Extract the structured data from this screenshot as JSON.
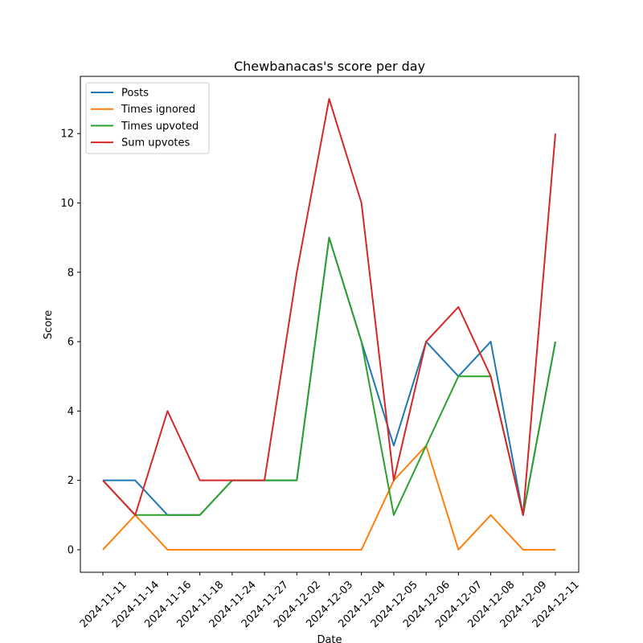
{
  "chart_data": {
    "type": "line",
    "title": "Chewbanacas's score per day",
    "xlabel": "Date",
    "ylabel": "Score",
    "categories": [
      "2024-11-11",
      "2024-11-14",
      "2024-11-16",
      "2024-11-18",
      "2024-11-24",
      "2024-11-27",
      "2024-12-02",
      "2024-12-03",
      "2024-12-04",
      "2024-12-05",
      "2024-12-06",
      "2024-12-07",
      "2024-12-08",
      "2024-12-09",
      "2024-12-11"
    ],
    "series": [
      {
        "name": "Posts",
        "color": "#1f77b4",
        "values": [
          2,
          2,
          1,
          1,
          2,
          2,
          2,
          9,
          6,
          3,
          6,
          5,
          6,
          1,
          6
        ]
      },
      {
        "name": "Times ignored",
        "color": "#ff7f0e",
        "values": [
          0,
          1,
          0,
          0,
          0,
          0,
          0,
          0,
          0,
          2,
          3,
          0,
          1,
          0,
          0
        ]
      },
      {
        "name": "Times upvoted",
        "color": "#2ca02c",
        "values": [
          2,
          1,
          1,
          1,
          2,
          2,
          2,
          9,
          6,
          1,
          3,
          5,
          5,
          1,
          6
        ]
      },
      {
        "name": "Sum upvotes",
        "color": "#d62728",
        "values": [
          2,
          1,
          4,
          2,
          2,
          2,
          8,
          13,
          10,
          2,
          6,
          7,
          5,
          1,
          12
        ]
      }
    ],
    "ylim": [
      -0.65,
      13.65
    ],
    "yticks": [
      0,
      2,
      4,
      6,
      8,
      10,
      12
    ],
    "legend": "upper left"
  }
}
